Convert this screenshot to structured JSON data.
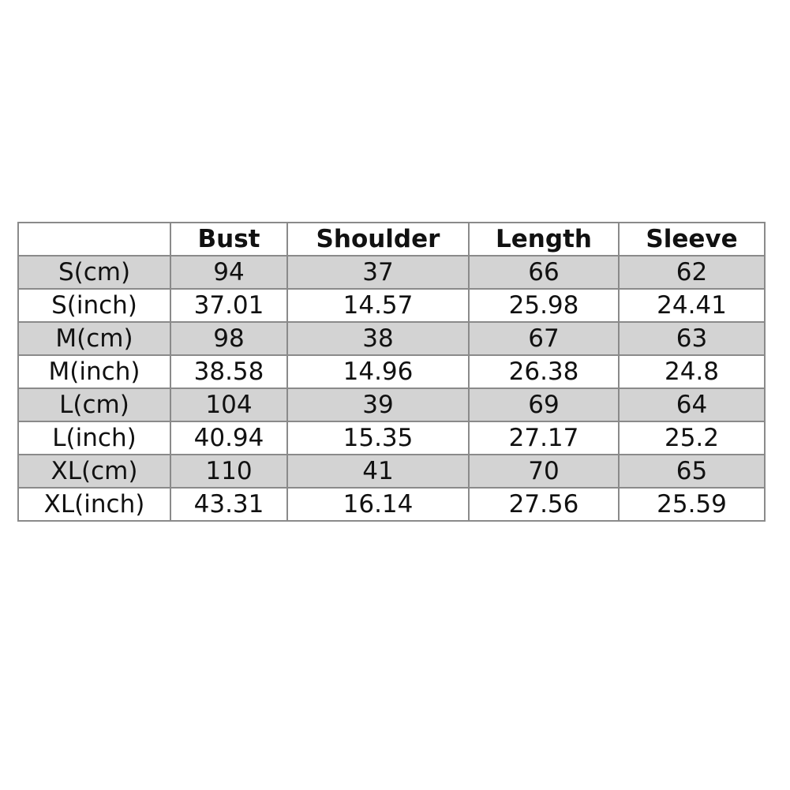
{
  "table": {
    "headers": [
      "",
      "Bust",
      "Shoulder",
      "Length",
      "Sleeve"
    ],
    "rows": [
      [
        "S(cm)",
        "94",
        "37",
        "66",
        "62"
      ],
      [
        "S(inch)",
        "37.01",
        "14.57",
        "25.98",
        "24.41"
      ],
      [
        "M(cm)",
        "98",
        "38",
        "67",
        "63"
      ],
      [
        "M(inch)",
        "38.58",
        "14.96",
        "26.38",
        "24.8"
      ],
      [
        "L(cm)",
        "104",
        "39",
        "69",
        "64"
      ],
      [
        "L(inch)",
        "40.94",
        "15.35",
        "27.17",
        "25.2"
      ],
      [
        "XL(cm)",
        "110",
        "41",
        "70",
        "65"
      ],
      [
        "XL(inch)",
        "43.31",
        "16.14",
        "27.56",
        "25.59"
      ]
    ],
    "shaded_row_color": "#d3d3d3"
  }
}
